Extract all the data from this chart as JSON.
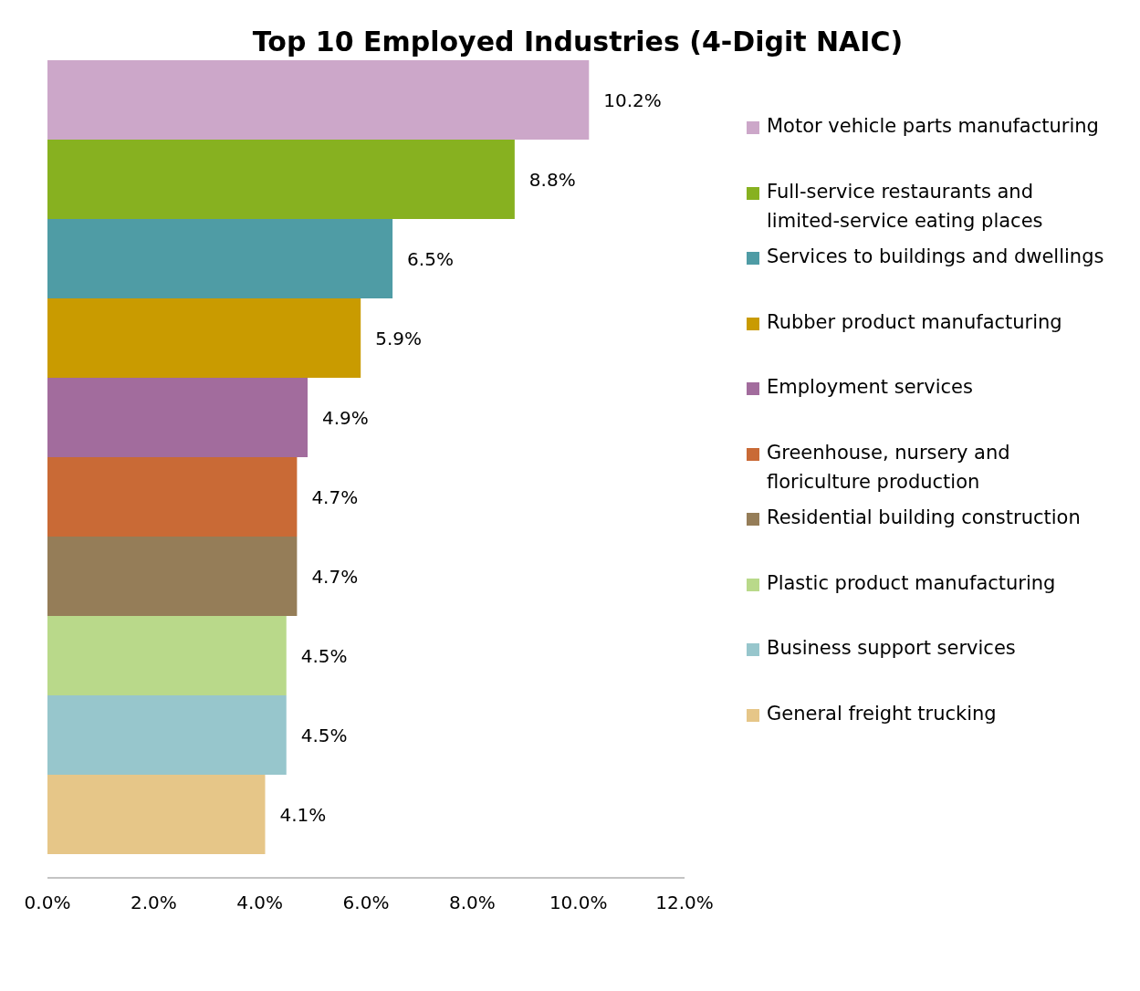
{
  "chart_data": {
    "type": "bar",
    "orientation": "horizontal",
    "title": "Top 10 Employed Industries (4-Digit NAIC)",
    "categories": [
      null
    ],
    "series": [
      {
        "name": "Motor vehicle parts manufacturing",
        "color": "#cca7c9",
        "values": [
          10.2
        ],
        "value_labels": [
          "10.2%"
        ]
      },
      {
        "name": "Full-service restaurants and limited-service eating places",
        "color": "#87b120",
        "values": [
          8.8
        ],
        "value_labels": [
          "8.8%"
        ]
      },
      {
        "name": "Services to buildings and dwellings",
        "color": "#4f9ca5",
        "values": [
          6.5
        ],
        "value_labels": [
          "6.5%"
        ]
      },
      {
        "name": "Rubber product manufacturing",
        "color": "#c99b00",
        "values": [
          5.9
        ],
        "value_labels": [
          "5.9%"
        ]
      },
      {
        "name": "Employment services",
        "color": "#a26c9d",
        "values": [
          4.9
        ],
        "value_labels": [
          "4.9%"
        ]
      },
      {
        "name": "Greenhouse, nursery and floriculture production",
        "color": "#c96a36",
        "values": [
          4.7
        ],
        "value_labels": [
          "4.7%"
        ]
      },
      {
        "name": "Residential building construction",
        "color": "#957d58",
        "values": [
          4.7
        ],
        "value_labels": [
          "4.7%"
        ]
      },
      {
        "name": "Plastic product manufacturing",
        "color": "#b9d98a",
        "values": [
          4.5
        ],
        "value_labels": [
          "4.5%"
        ]
      },
      {
        "name": "Business support services",
        "color": "#97c6cc",
        "values": [
          4.5
        ],
        "value_labels": [
          "4.5%"
        ]
      },
      {
        "name": "General freight trucking",
        "color": "#e6c688",
        "values": [
          4.1
        ],
        "value_labels": [
          "4.1%"
        ]
      }
    ],
    "xlim": [
      0,
      12
    ],
    "xticks": [
      {
        "value": 0,
        "label": "0.0%"
      },
      {
        "value": 2,
        "label": "2.0%"
      },
      {
        "value": 4,
        "label": "4.0%"
      },
      {
        "value": 6,
        "label": "6.0%"
      },
      {
        "value": 8,
        "label": "8.0%"
      },
      {
        "value": 10,
        "label": "10.0%"
      },
      {
        "value": 12,
        "label": "12.0%"
      }
    ],
    "tick_labels": "x",
    "grid": false,
    "legend": "right"
  }
}
